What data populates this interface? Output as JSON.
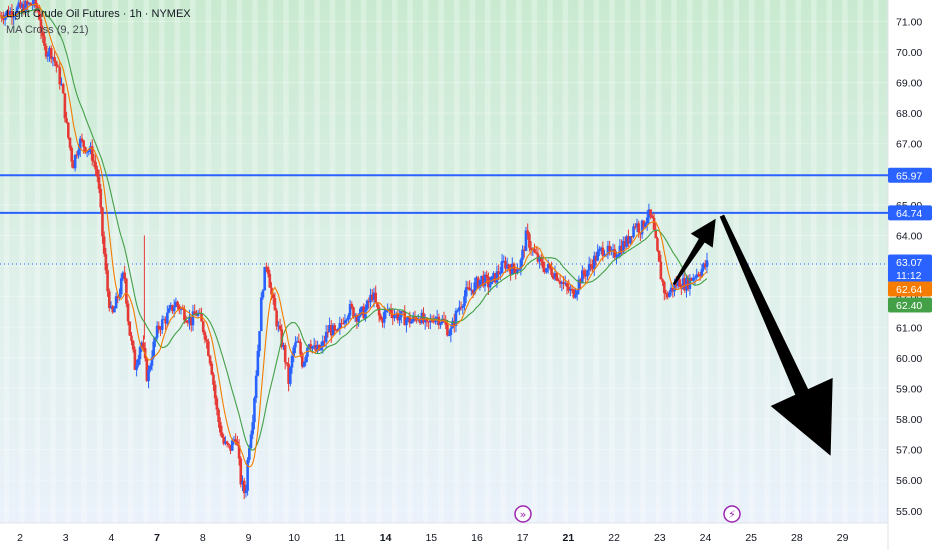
{
  "header": {
    "title": "Light Crude Oil Futures · 1h · NYMEX",
    "indicator": "MA Cross (9, 21)"
  },
  "colors": {
    "up": "#2962ff",
    "down": "#e53935",
    "ma_fast": "#f57c00",
    "ma_slow": "#43a047",
    "hline": "#2962ff",
    "arrow": "#000000",
    "badge_price": "#2962ff",
    "badge_ma_fast": "#f57c00",
    "badge_ma_slow": "#43a047",
    "event_icon": "#9c27b0"
  },
  "badges": [
    {
      "value": "65.97",
      "kind": "hline"
    },
    {
      "value": "64.74",
      "kind": "hline"
    },
    {
      "value": "63.07",
      "kind": "price"
    },
    {
      "value": "11:12",
      "kind": "countdown",
      "at": 62.72
    },
    {
      "value": "62.64",
      "kind": "ma_fast"
    },
    {
      "value": "62.40",
      "kind": "ma_slow"
    }
  ],
  "event_icons": [
    {
      "name": "fast-forward-event-icon",
      "glyph": "»",
      "x": 17.1
    },
    {
      "name": "lightning-event-icon",
      "glyph": "⚡",
      "x": 24.5
    }
  ],
  "chart_data": {
    "type": "candlestick",
    "title": "Light Crude Oil Futures · 1h · NYMEX",
    "indicator": "MA Cross (9, 21)",
    "x_ticks": [
      "2",
      "3",
      "4",
      "7",
      "8",
      "9",
      "10",
      "11",
      "14",
      "15",
      "16",
      "17",
      "21",
      "22",
      "23",
      "24",
      "25",
      "28",
      "29"
    ],
    "bold_ticks": [
      "7",
      "14",
      "21"
    ],
    "y_ticks": [
      "55.00",
      "56.00",
      "57.00",
      "58.00",
      "59.00",
      "60.00",
      "61.00",
      "62.00",
      "63.00",
      "64.00",
      "65.00",
      "66.00",
      "67.00",
      "68.00",
      "69.00",
      "70.00",
      "71.00"
    ],
    "ylim": [
      54.6,
      71.7
    ],
    "xlim": [
      1.6,
      30.2
    ],
    "horizontal_lines": [
      65.97,
      64.74
    ],
    "last_price": 63.07,
    "price_path": [
      [
        1.6,
        71.2
      ],
      [
        2.2,
        71.4
      ],
      [
        2.7,
        71.6
      ],
      [
        2.85,
        71.3
      ],
      [
        3.0,
        70.1
      ],
      [
        3.25,
        70.0
      ],
      [
        3.4,
        69.6
      ],
      [
        3.6,
        68.8
      ],
      [
        3.75,
        67.5
      ],
      [
        3.95,
        66.3
      ],
      [
        4.15,
        67.1
      ],
      [
        4.35,
        66.9
      ],
      [
        4.55,
        66.7
      ],
      [
        4.75,
        65.9
      ],
      [
        4.9,
        64.0
      ],
      [
        5.05,
        62.3
      ],
      [
        5.2,
        61.3
      ],
      [
        5.45,
        62.2
      ],
      [
        5.6,
        62.8
      ],
      [
        5.75,
        61.0
      ],
      [
        5.95,
        59.7
      ],
      [
        6.15,
        60.6
      ],
      [
        6.35,
        59.3
      ],
      [
        6.5,
        60.2
      ],
      [
        6.7,
        61.0
      ],
      [
        6.95,
        61.3
      ],
      [
        7.25,
        61.8
      ],
      [
        7.5,
        61.5
      ],
      [
        7.75,
        61.2
      ],
      [
        7.95,
        61.5
      ],
      [
        8.2,
        60.8
      ],
      [
        8.4,
        59.8
      ],
      [
        8.6,
        58.1
      ],
      [
        8.8,
        57.2
      ],
      [
        9.0,
        57.0
      ],
      [
        9.2,
        57.5
      ],
      [
        9.35,
        56.0
      ],
      [
        9.5,
        55.5
      ],
      [
        9.6,
        57.0
      ],
      [
        9.75,
        58.2
      ],
      [
        9.9,
        60.2
      ],
      [
        10.05,
        62.3
      ],
      [
        10.2,
        63.2
      ],
      [
        10.35,
        62.0
      ],
      [
        10.55,
        61.0
      ],
      [
        10.75,
        60.2
      ],
      [
        10.9,
        59.2
      ],
      [
        11.05,
        60.3
      ],
      [
        11.2,
        60.5
      ],
      [
        11.35,
        59.8
      ],
      [
        11.55,
        60.6
      ],
      [
        11.75,
        60.2
      ],
      [
        11.95,
        60.3
      ],
      [
        12.2,
        61.0
      ],
      [
        12.45,
        60.7
      ],
      [
        12.65,
        61.3
      ],
      [
        12.85,
        61.6
      ],
      [
        13.1,
        61.4
      ],
      [
        13.35,
        61.5
      ],
      [
        13.6,
        62.1
      ],
      [
        13.85,
        61.2
      ],
      [
        14.1,
        61.6
      ],
      [
        14.35,
        61.4
      ],
      [
        14.6,
        61.3
      ],
      [
        14.85,
        61.2
      ],
      [
        15.1,
        61.4
      ],
      [
        15.35,
        61.0
      ],
      [
        15.6,
        61.4
      ],
      [
        15.85,
        61.2
      ],
      [
        16.1,
        60.8
      ],
      [
        16.35,
        61.6
      ],
      [
        16.6,
        62.1
      ],
      [
        16.85,
        62.3
      ],
      [
        17.1,
        62.6
      ],
      [
        17.35,
        62.4
      ],
      [
        17.6,
        62.7
      ],
      [
        17.85,
        63.1
      ],
      [
        18.1,
        62.9
      ],
      [
        18.35,
        63.0
      ],
      [
        18.55,
        64.0
      ],
      [
        18.8,
        63.4
      ],
      [
        19.05,
        63.0
      ],
      [
        19.3,
        62.9
      ],
      [
        19.55,
        62.7
      ],
      [
        19.8,
        62.3
      ],
      [
        20.05,
        62.1
      ],
      [
        20.3,
        62.6
      ],
      [
        20.55,
        62.9
      ],
      [
        20.8,
        63.3
      ],
      [
        21.05,
        63.6
      ],
      [
        21.3,
        63.3
      ],
      [
        21.55,
        63.6
      ],
      [
        21.8,
        63.8
      ],
      [
        22.05,
        64.4
      ],
      [
        22.25,
        64.2
      ],
      [
        22.45,
        64.7
      ],
      [
        22.6,
        64.5
      ],
      [
        22.75,
        63.5
      ],
      [
        22.9,
        62.6
      ],
      [
        23.05,
        62.0
      ],
      [
        23.2,
        62.2
      ],
      [
        23.45,
        62.5
      ],
      [
        23.7,
        62.4
      ],
      [
        23.95,
        62.7
      ],
      [
        24.2,
        62.9
      ],
      [
        24.4,
        63.07
      ]
    ],
    "arrows": [
      {
        "from": [
          23.3,
          62.4
        ],
        "to": [
          24.65,
          64.55
        ],
        "style": "thin-up"
      },
      {
        "from": [
          24.85,
          64.65
        ],
        "to": [
          28.35,
          56.8
        ],
        "style": "thick-down"
      }
    ]
  }
}
